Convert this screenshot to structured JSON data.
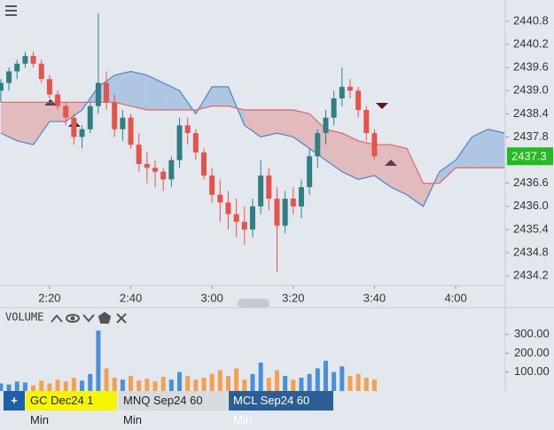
{
  "chart_data": {
    "type": "candlestick",
    "x": [
      128,
      130,
      132,
      134,
      136,
      138,
      140,
      142,
      144,
      146,
      148,
      150,
      152,
      154,
      156,
      158,
      160,
      162,
      164,
      166,
      168,
      170,
      172,
      174,
      176,
      178,
      180,
      182,
      184,
      186,
      188,
      190,
      192,
      194,
      196,
      198,
      200,
      202,
      204,
      206,
      208,
      210,
      212,
      214,
      216,
      218,
      220
    ],
    "open": [
      2439.0,
      2439.2,
      2439.5,
      2439.7,
      2439.9,
      2439.7,
      2439.3,
      2438.9,
      2438.6,
      2438.3,
      2437.8,
      2438.0,
      2438.6,
      2439.2,
      2438.7,
      2438.0,
      2438.3,
      2437.6,
      2437.1,
      2437.0,
      2436.9,
      2436.7,
      2437.2,
      2438.1,
      2437.9,
      2437.4,
      2436.8,
      2436.3,
      2436.1,
      2435.8,
      2435.6,
      2435.4,
      2436.0,
      2436.8,
      2436.2,
      2435.5,
      2436.2,
      2436.0,
      2436.5,
      2437.3,
      2437.9,
      2438.3,
      2438.8,
      2439.1,
      2439.0,
      2438.5,
      2437.9
    ],
    "high": [
      2439.3,
      2439.6,
      2439.8,
      2440.0,
      2440.0,
      2439.8,
      2439.4,
      2439.0,
      2438.7,
      2438.4,
      2438.1,
      2438.7,
      2441.0,
      2439.5,
      2438.9,
      2438.5,
      2438.4,
      2437.9,
      2437.4,
      2437.2,
      2437.0,
      2437.3,
      2438.3,
      2438.3,
      2438.0,
      2437.5,
      2437.0,
      2436.7,
      2436.4,
      2436.2,
      2436.0,
      2436.2,
      2437.2,
      2437.0,
      2436.5,
      2436.4,
      2436.5,
      2436.7,
      2437.5,
      2438.0,
      2438.5,
      2439.0,
      2439.6,
      2439.3,
      2439.1,
      2438.6,
      2438.0
    ],
    "low": [
      2438.7,
      2439.0,
      2439.3,
      2439.6,
      2439.6,
      2439.2,
      2438.8,
      2438.5,
      2438.1,
      2437.6,
      2437.5,
      2437.9,
      2438.4,
      2438.5,
      2437.8,
      2437.7,
      2437.5,
      2436.9,
      2436.6,
      2436.5,
      2436.4,
      2436.5,
      2437.0,
      2437.6,
      2437.2,
      2436.7,
      2436.1,
      2435.6,
      2435.4,
      2435.2,
      2435.0,
      2435.2,
      2435.8,
      2435.9,
      2434.3,
      2435.3,
      2435.8,
      2435.7,
      2436.3,
      2437.0,
      2437.6,
      2438.1,
      2438.6,
      2438.8,
      2438.3,
      2437.7,
      2437.2
    ],
    "close": [
      2439.2,
      2439.5,
      2439.7,
      2439.9,
      2439.7,
      2439.3,
      2438.9,
      2438.6,
      2438.3,
      2437.8,
      2438.0,
      2438.6,
      2439.2,
      2438.7,
      2438.0,
      2438.3,
      2437.6,
      2437.1,
      2437.0,
      2436.9,
      2436.7,
      2437.2,
      2438.1,
      2437.9,
      2437.4,
      2436.8,
      2436.3,
      2436.1,
      2435.8,
      2435.6,
      2435.4,
      2436.0,
      2436.8,
      2436.2,
      2435.5,
      2436.2,
      2436.0,
      2436.5,
      2437.3,
      2437.9,
      2438.3,
      2438.8,
      2439.1,
      2439.0,
      2438.5,
      2437.9,
      2437.3
    ],
    "up_color": "#2f7f84",
    "down_color": "#e5534b",
    "cloud": {
      "x": [
        128,
        132,
        136,
        140,
        144,
        148,
        152,
        156,
        160,
        164,
        168,
        172,
        176,
        180,
        184,
        188,
        192,
        196,
        200,
        204,
        208,
        212,
        216,
        220,
        224,
        228,
        232,
        236,
        240,
        244,
        248,
        252
      ],
      "span_a": [
        2437.9,
        2437.7,
        2437.6,
        2438.2,
        2438.2,
        2438.5,
        2439.1,
        2439.4,
        2439.5,
        2439.4,
        2439.2,
        2439.0,
        2438.4,
        2439.1,
        2439.1,
        2438.1,
        2437.8,
        2437.9,
        2437.8,
        2437.5,
        2437.2,
        2436.9,
        2436.7,
        2436.8,
        2436.5,
        2436.3,
        2436.0,
        2436.9,
        2437.2,
        2437.8,
        2438.0,
        2437.9
      ],
      "span_b": [
        2438.7,
        2438.7,
        2438.7,
        2438.7,
        2438.7,
        2438.7,
        2438.7,
        2438.7,
        2438.6,
        2438.5,
        2438.5,
        2438.5,
        2438.5,
        2438.6,
        2438.6,
        2438.5,
        2438.5,
        2438.5,
        2438.5,
        2438.4,
        2438.0,
        2437.9,
        2437.7,
        2437.6,
        2437.6,
        2437.5,
        2436.6,
        2436.6,
        2437.0,
        2437.0,
        2437.0,
        2437.0
      ],
      "bull_color": "#4a86c8",
      "bear_color": "#e06666"
    },
    "xlim": [
      127.8,
      252.2
    ],
    "xticks": [
      {
        "value": 140,
        "label": "2:20"
      },
      {
        "value": 160,
        "label": "2:40"
      },
      {
        "value": 180,
        "label": "3:00"
      },
      {
        "value": 200,
        "label": "3:20"
      },
      {
        "value": 220,
        "label": "3:40"
      },
      {
        "value": 240,
        "label": "4:00"
      }
    ],
    "ylim": [
      2433.95,
      2441.35
    ],
    "yticks": [
      2440.8,
      2440.2,
      2439.6,
      {
        "value": 2439.0,
        "label": "2439.0"
      },
      2438.4,
      2437.8,
      2436.6,
      {
        "value": 2436.0,
        "label": "2436.0"
      },
      2435.4,
      2434.8,
      2434.2
    ],
    "last_price": 2437.3,
    "last_price_color": "#22bb22",
    "volume": {
      "title": "VOLUME",
      "values": [
        40,
        35,
        50,
        45,
        30,
        55,
        40,
        60,
        50,
        70,
        55,
        90,
        320,
        120,
        70,
        60,
        80,
        55,
        65,
        50,
        75,
        60,
        100,
        80,
        60,
        70,
        90,
        110,
        80,
        120,
        60,
        90,
        150,
        70,
        110,
        80,
        60,
        70,
        90,
        120,
        160,
        100,
        130,
        80,
        90,
        70,
        60
      ],
      "up_color": "#4a90d9",
      "down_color": "#f5a04a",
      "ylim": [
        0,
        380
      ],
      "yticks": [
        {
          "value": 300,
          "label": "300.00"
        },
        {
          "value": 200,
          "label": "200.00"
        },
        {
          "value": 100,
          "label": "100.00"
        }
      ]
    }
  },
  "tabs": {
    "add": "+",
    "items": [
      "GC Dec24 1 Min",
      "MNQ Sep24 60 Min",
      "MCL Sep24 60 Min"
    ]
  }
}
